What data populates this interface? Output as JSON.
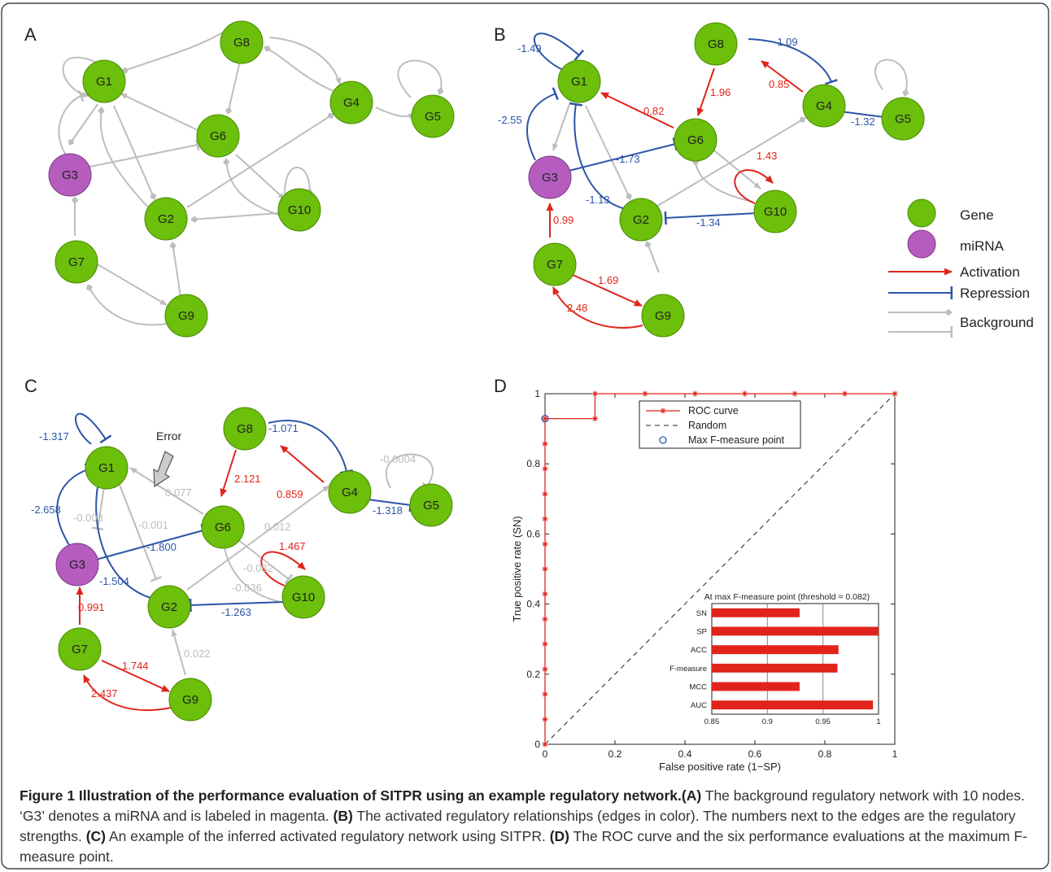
{
  "panels": {
    "A": {
      "label": "A"
    },
    "B": {
      "label": "B"
    },
    "C": {
      "label": "C"
    },
    "D": {
      "label": "D"
    }
  },
  "nodes": [
    "G1",
    "G2",
    "G3",
    "G4",
    "G5",
    "G6",
    "G7",
    "G8",
    "G9",
    "G10"
  ],
  "legend": {
    "gene": "Gene",
    "mirna": "miRNA",
    "activation": "Activation",
    "repression": "Repression",
    "background": "Background"
  },
  "colors": {
    "gene": "#6cbf0a",
    "mirna": "#b65cbf",
    "activation": "#e0241b",
    "repression": "#2b55a8",
    "background": "#bdbdbd"
  },
  "panel_b_weights": {
    "g1_self": "-1.49",
    "g3_g1": "-2.55",
    "g8_g4": "-1.09",
    "g4_g8": "0.85",
    "g8_g6": "1.96",
    "g6_g1": "0.82",
    "g4_g5": "-1.32",
    "g3_g6": "-1.73",
    "g10_self": "1.43",
    "g2_g1": "-1.13",
    "g10_g2": "-1.34",
    "g7_g3": "0.99",
    "g7_g9": "1.69",
    "g9_g7": "2.48"
  },
  "panel_c_weights": {
    "g1_self": "-1.317",
    "g3_g1": "-2.658",
    "g3_g1_bg": "-0.003",
    "g2_g1_bg": "-0.001",
    "g6_g1": "0.077",
    "g8_g4": "-1.071",
    "g4_g8": "0.859",
    "g8_g6": "2.121",
    "g5_self": "-0.0004",
    "g4_g5": "-1.318",
    "g2_g4": "0.012",
    "g3_g6": "-1.800",
    "g10_self": "1.467",
    "g10_g6": "-0.082",
    "g2_g1": "-1.504",
    "g6_g2": "-0.036",
    "g10_g2": "-1.263",
    "g7_g3": "0.991",
    "g7_g9": "1.744",
    "g9_g7": "2.437",
    "g9_g2": "0.022",
    "error": "Error"
  },
  "chart_data": {
    "type": "line",
    "xlabel": "False positive rate (1−SP)",
    "ylabel": "True positive rate (SN)",
    "xlim": [
      0,
      1
    ],
    "ylim": [
      0,
      1
    ],
    "xticks": [
      "0",
      "0.2",
      "0.4",
      "0.6",
      "0.8",
      "1"
    ],
    "yticks": [
      "0",
      "0.2",
      "0.4",
      "0.6",
      "0.8",
      "1"
    ],
    "legend_position": "top-center",
    "series": [
      {
        "name": "ROC curve",
        "x": [
          0,
          0,
          0,
          0,
          0,
          0,
          0,
          0,
          0,
          0,
          0,
          0,
          0,
          0,
          0.143,
          0.143,
          0.286,
          0.429,
          0.571,
          0.714,
          0.857,
          1
        ],
        "y": [
          0,
          0.071,
          0.143,
          0.214,
          0.286,
          0.357,
          0.429,
          0.5,
          0.571,
          0.643,
          0.714,
          0.786,
          0.857,
          0.929,
          0.929,
          1,
          1,
          1,
          1,
          1,
          1,
          1
        ]
      },
      {
        "name": "Random",
        "x": [
          0,
          1
        ],
        "y": [
          0,
          1
        ]
      },
      {
        "name": "Max F-measure point",
        "x": [
          0
        ],
        "y": [
          0.929
        ]
      }
    ],
    "inset": {
      "type": "bar",
      "title": "At max F-measure point (threshold = 0.082)",
      "categories": [
        "SN",
        "SP",
        "ACC",
        "F-measure",
        "MCC",
        "AUC"
      ],
      "values": [
        0.929,
        1.0,
        0.964,
        0.963,
        0.929,
        0.995
      ],
      "xlim": [
        0.85,
        1
      ],
      "xticks": [
        "0.85",
        "0.9",
        "0.95",
        "1"
      ]
    }
  },
  "caption": {
    "title": "Figure 1 Illustration of the performance evaluation of SITPR using an example regulatory network.",
    "a_tag": "(A)",
    "a_text": " The background regulatory network with 10 nodes. ‘G3’ denotes a miRNA and is labeled in magenta. ",
    "b_tag": "(B)",
    "b_text": " The activated regulatory relationships (edges in color). The numbers next to the edges are the regulatory strengths. ",
    "c_tag": "(C)",
    "c_text": " An example of the inferred activated regulatory network using SITPR. ",
    "d_tag": "(D)",
    "d_text": " The ROC curve and the six performance evaluations at the maximum F-measure point."
  }
}
